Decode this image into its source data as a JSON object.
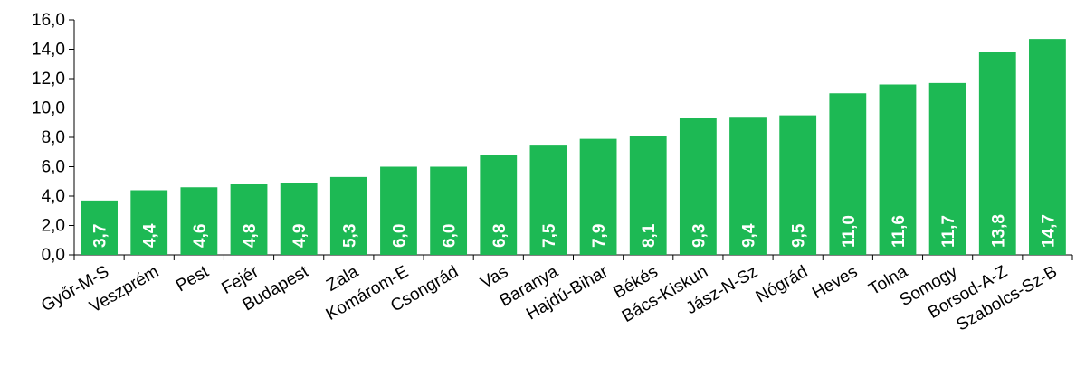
{
  "chart_data": {
    "type": "bar",
    "categories": [
      "Győr-M-S",
      "Veszprém",
      "Pest",
      "Fejér",
      "Budapest",
      "Zala",
      "Komárom-E",
      "Csongrád",
      "Vas",
      "Baranya",
      "Hajdú-Bihar",
      "Békés",
      "Bács-Kiskun",
      "Jász-N-Sz",
      "Nógrád",
      "Heves",
      "Tolna",
      "Somogy",
      "Borsod-A-Z",
      "Szabolcs-Sz-B"
    ],
    "values": [
      3.7,
      4.4,
      4.6,
      4.8,
      4.9,
      5.3,
      6.0,
      6.0,
      6.8,
      7.5,
      7.9,
      8.1,
      9.3,
      9.4,
      9.5,
      11.0,
      11.6,
      11.7,
      13.8,
      14.7
    ],
    "value_labels": [
      "3,7",
      "4,4",
      "4,6",
      "4,8",
      "4,9",
      "5,3",
      "6,0",
      "6,0",
      "6,8",
      "7,5",
      "7,9",
      "8,1",
      "9,3",
      "9,4",
      "9,5",
      "11,0",
      "11,6",
      "11,7",
      "13,8",
      "14,7"
    ],
    "yticks": [
      "0,0",
      "2,0",
      "4,0",
      "6,0",
      "8,0",
      "10,0",
      "12,0",
      "14,0",
      "16,0"
    ],
    "ylim": [
      0,
      16
    ],
    "grid": false,
    "bar_color": "#1db954",
    "title": "",
    "xlabel": "",
    "ylabel": ""
  }
}
